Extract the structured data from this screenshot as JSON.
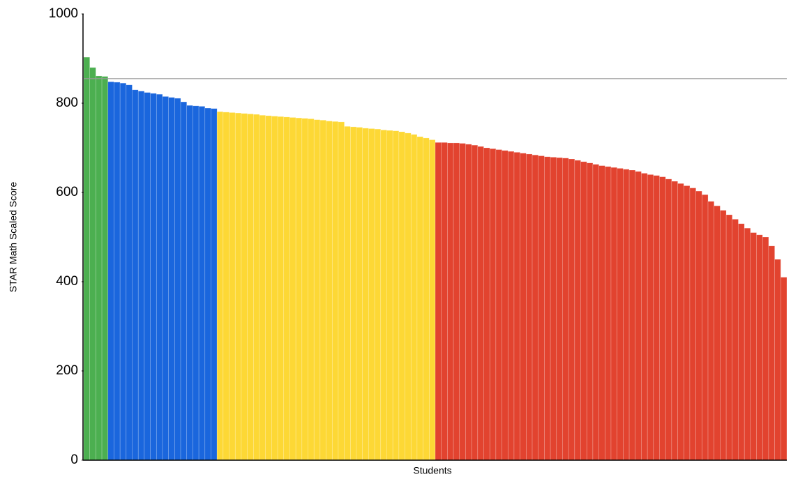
{
  "chart_data": {
    "type": "bar",
    "xlabel": "Students",
    "ylabel": "STAR Math Scaled Score",
    "ylim": [
      0,
      1000
    ],
    "yticks": [
      0,
      200,
      400,
      600,
      800,
      1000
    ],
    "reference_line": 855,
    "series": [
      {
        "color": "#4caf50",
        "values": [
          903,
          880,
          861,
          860
        ]
      },
      {
        "color": "#1a66dd",
        "values": [
          848,
          847,
          845,
          841,
          830,
          827,
          824,
          822,
          820,
          815,
          813,
          811,
          803,
          795,
          794,
          793,
          789,
          788
        ]
      },
      {
        "color": "#fdd835",
        "values": [
          781,
          780,
          779,
          778,
          777,
          776,
          775,
          773,
          772,
          771,
          770,
          769,
          768,
          767,
          766,
          765,
          763,
          762,
          760,
          759,
          758,
          748,
          747,
          746,
          744,
          743,
          742,
          740,
          739,
          738,
          736,
          733,
          730,
          725,
          722,
          718
        ]
      },
      {
        "color": "#e2432f",
        "values": [
          712,
          712,
          711,
          711,
          710,
          708,
          706,
          703,
          700,
          698,
          696,
          694,
          692,
          690,
          688,
          686,
          684,
          682,
          680,
          679,
          678,
          677,
          675,
          672,
          669,
          666,
          663,
          660,
          658,
          656,
          654,
          652,
          650,
          647,
          643,
          640,
          638,
          635,
          630,
          625,
          620,
          615,
          610,
          603,
          595,
          580,
          570,
          560,
          550,
          540,
          530,
          520,
          510,
          505,
          500,
          480,
          450,
          410
        ]
      }
    ]
  }
}
